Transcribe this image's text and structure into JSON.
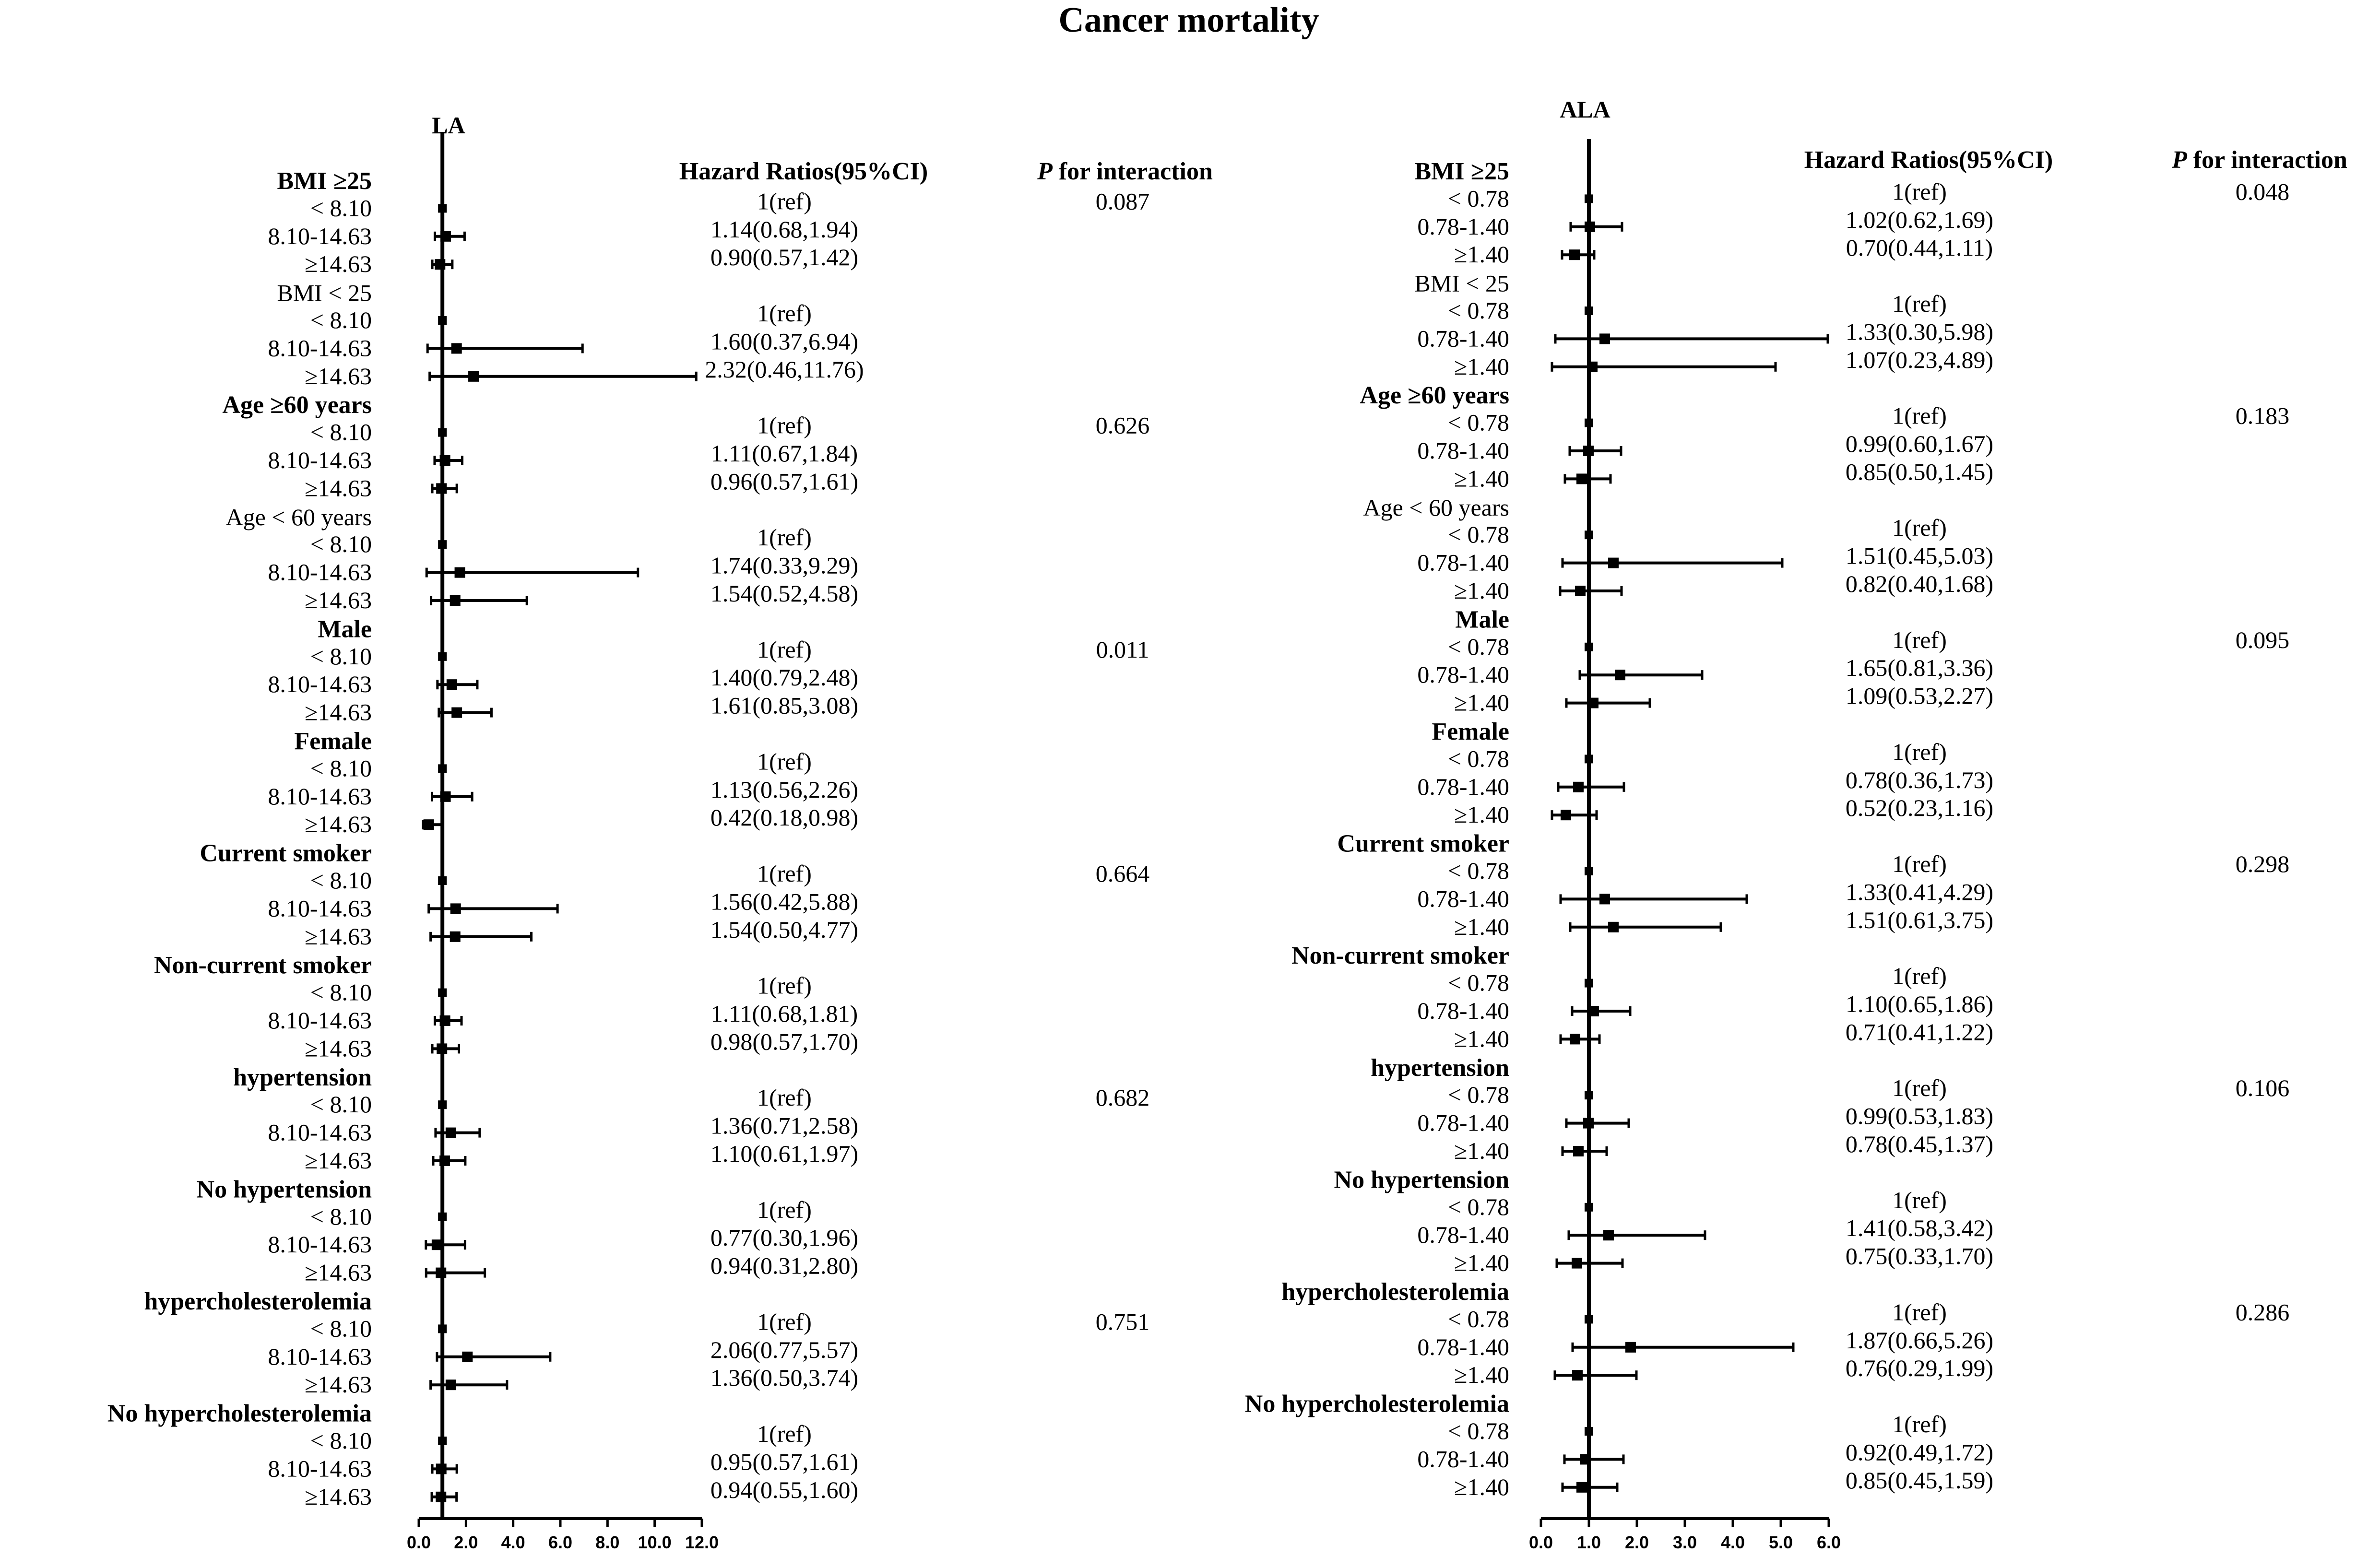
{
  "chart_data": {
    "type": "forest",
    "title": "Cancer mortality",
    "column_headers": {
      "hr": "Hazard Ratios(95%CI)",
      "p_prefix": "P",
      "p_rest": " for interaction"
    },
    "panels": [
      {
        "name": "LA",
        "xlim": [
          0,
          12
        ],
        "ticks": [
          "0.0",
          "2.0",
          "4.0",
          "6.0",
          "8.0",
          "10.0",
          "12.0"
        ],
        "tick_values": [
          0,
          2,
          4,
          6,
          8,
          10,
          12
        ],
        "ref_line": 1,
        "groups": [
          {
            "label": "BMI ≥25",
            "bold": true,
            "p": "0.087",
            "rows": [
              {
                "level": "< 8.10",
                "hr": 1,
                "lo": 1,
                "hi": 1,
                "text": "1(ref)"
              },
              {
                "level": "8.10-14.63",
                "hr": 1.14,
                "lo": 0.68,
                "hi": 1.94,
                "text": "1.14(0.68,1.94)"
              },
              {
                "level": "≥14.63",
                "hr": 0.9,
                "lo": 0.57,
                "hi": 1.42,
                "text": "0.90(0.57,1.42)"
              }
            ]
          },
          {
            "label": "BMI < 25",
            "bold": false,
            "p": "",
            "rows": [
              {
                "level": "< 8.10",
                "hr": 1,
                "lo": 1,
                "hi": 1,
                "text": "1(ref)"
              },
              {
                "level": "8.10-14.63",
                "hr": 1.6,
                "lo": 0.37,
                "hi": 6.94,
                "text": "1.60(0.37,6.94)"
              },
              {
                "level": "≥14.63",
                "hr": 2.32,
                "lo": 0.46,
                "hi": 11.76,
                "text": "2.32(0.46,11.76)"
              }
            ]
          },
          {
            "label": "Age ≥60 years",
            "bold": true,
            "p": "0.626",
            "rows": [
              {
                "level": "< 8.10",
                "hr": 1,
                "lo": 1,
                "hi": 1,
                "text": "1(ref)"
              },
              {
                "level": "8.10-14.63",
                "hr": 1.11,
                "lo": 0.67,
                "hi": 1.84,
                "text": "1.11(0.67,1.84)"
              },
              {
                "level": "≥14.63",
                "hr": 0.96,
                "lo": 0.57,
                "hi": 1.61,
                "text": "0.96(0.57,1.61)"
              }
            ]
          },
          {
            "label": "Age < 60 years",
            "bold": false,
            "p": "",
            "rows": [
              {
                "level": "< 8.10",
                "hr": 1,
                "lo": 1,
                "hi": 1,
                "text": "1(ref)"
              },
              {
                "level": "8.10-14.63",
                "hr": 1.74,
                "lo": 0.33,
                "hi": 9.29,
                "text": "1.74(0.33,9.29)"
              },
              {
                "level": "≥14.63",
                "hr": 1.54,
                "lo": 0.52,
                "hi": 4.58,
                "text": "1.54(0.52,4.58)"
              }
            ]
          },
          {
            "label": "Male",
            "bold": true,
            "p": "0.011",
            "rows": [
              {
                "level": "< 8.10",
                "hr": 1,
                "lo": 1,
                "hi": 1,
                "text": "1(ref)"
              },
              {
                "level": "8.10-14.63",
                "hr": 1.4,
                "lo": 0.79,
                "hi": 2.48,
                "text": "1.40(0.79,2.48)"
              },
              {
                "level": "≥14.63",
                "hr": 1.61,
                "lo": 0.85,
                "hi": 3.08,
                "text": "1.61(0.85,3.08)"
              }
            ]
          },
          {
            "label": "Female",
            "bold": true,
            "p": "",
            "rows": [
              {
                "level": "< 8.10",
                "hr": 1,
                "lo": 1,
                "hi": 1,
                "text": "1(ref)"
              },
              {
                "level": "8.10-14.63",
                "hr": 1.13,
                "lo": 0.56,
                "hi": 2.26,
                "text": "1.13(0.56,2.26)"
              },
              {
                "level": "≥14.63",
                "hr": 0.42,
                "lo": 0.18,
                "hi": 0.98,
                "text": "0.42(0.18,0.98)"
              }
            ]
          },
          {
            "label": "Current smoker",
            "bold": true,
            "p": "0.664",
            "rows": [
              {
                "level": "< 8.10",
                "hr": 1,
                "lo": 1,
                "hi": 1,
                "text": "1(ref)"
              },
              {
                "level": "8.10-14.63",
                "hr": 1.56,
                "lo": 0.42,
                "hi": 5.88,
                "text": "1.56(0.42,5.88)"
              },
              {
                "level": "≥14.63",
                "hr": 1.54,
                "lo": 0.5,
                "hi": 4.77,
                "text": "1.54(0.50,4.77)"
              }
            ]
          },
          {
            "label": "Non-current smoker",
            "bold": true,
            "p": "",
            "rows": [
              {
                "level": "< 8.10",
                "hr": 1,
                "lo": 1,
                "hi": 1,
                "text": "1(ref)"
              },
              {
                "level": "8.10-14.63",
                "hr": 1.11,
                "lo": 0.68,
                "hi": 1.81,
                "text": "1.11(0.68,1.81)"
              },
              {
                "level": "≥14.63",
                "hr": 0.98,
                "lo": 0.57,
                "hi": 1.7,
                "text": "0.98(0.57,1.70)"
              }
            ]
          },
          {
            "label": "hypertension",
            "bold": true,
            "p": "0.682",
            "rows": [
              {
                "level": "< 8.10",
                "hr": 1,
                "lo": 1,
                "hi": 1,
                "text": "1(ref)"
              },
              {
                "level": "8.10-14.63",
                "hr": 1.36,
                "lo": 0.71,
                "hi": 2.58,
                "text": "1.36(0.71,2.58)"
              },
              {
                "level": "≥14.63",
                "hr": 1.1,
                "lo": 0.61,
                "hi": 1.97,
                "text": "1.10(0.61,1.97)"
              }
            ]
          },
          {
            "label": "No hypertension",
            "bold": true,
            "p": "",
            "rows": [
              {
                "level": "< 8.10",
                "hr": 1,
                "lo": 1,
                "hi": 1,
                "text": "1(ref)"
              },
              {
                "level": "8.10-14.63",
                "hr": 0.77,
                "lo": 0.3,
                "hi": 1.96,
                "text": "0.77(0.30,1.96)"
              },
              {
                "level": "≥14.63",
                "hr": 0.94,
                "lo": 0.31,
                "hi": 2.8,
                "text": "0.94(0.31,2.80)"
              }
            ]
          },
          {
            "label": "hypercholesterolemia",
            "bold": true,
            "p": "0.751",
            "rows": [
              {
                "level": "< 8.10",
                "hr": 1,
                "lo": 1,
                "hi": 1,
                "text": "1(ref)"
              },
              {
                "level": "8.10-14.63",
                "hr": 2.06,
                "lo": 0.77,
                "hi": 5.57,
                "text": "2.06(0.77,5.57)"
              },
              {
                "level": "≥14.63",
                "hr": 1.36,
                "lo": 0.5,
                "hi": 3.74,
                "text": "1.36(0.50,3.74)"
              }
            ]
          },
          {
            "label": "No hypercholesterolemia",
            "bold": true,
            "p": "",
            "rows": [
              {
                "level": "< 8.10",
                "hr": 1,
                "lo": 1,
                "hi": 1,
                "text": "1(ref)"
              },
              {
                "level": "8.10-14.63",
                "hr": 0.95,
                "lo": 0.57,
                "hi": 1.61,
                "text": "0.95(0.57,1.61)"
              },
              {
                "level": "≥14.63",
                "hr": 0.94,
                "lo": 0.55,
                "hi": 1.6,
                "text": "0.94(0.55,1.60)"
              }
            ]
          }
        ]
      },
      {
        "name": "ALA",
        "xlim": [
          0,
          6
        ],
        "ticks": [
          "0.0",
          "1.0",
          "2.0",
          "3.0",
          "4.0",
          "5.0",
          "6.0"
        ],
        "tick_values": [
          0,
          1,
          2,
          3,
          4,
          5,
          6
        ],
        "ref_line": 1,
        "groups": [
          {
            "label": "BMI ≥25",
            "bold": true,
            "p": "0.048",
            "rows": [
              {
                "level": "< 0.78",
                "hr": 1,
                "lo": 1,
                "hi": 1,
                "text": "1(ref)"
              },
              {
                "level": "0.78-1.40",
                "hr": 1.02,
                "lo": 0.62,
                "hi": 1.69,
                "text": "1.02(0.62,1.69)"
              },
              {
                "level": "≥1.40",
                "hr": 0.7,
                "lo": 0.44,
                "hi": 1.11,
                "text": "0.70(0.44,1.11)"
              }
            ]
          },
          {
            "label": "BMI < 25",
            "bold": false,
            "p": "",
            "rows": [
              {
                "level": "< 0.78",
                "hr": 1,
                "lo": 1,
                "hi": 1,
                "text": "1(ref)"
              },
              {
                "level": "0.78-1.40",
                "hr": 1.33,
                "lo": 0.3,
                "hi": 5.98,
                "text": "1.33(0.30,5.98)"
              },
              {
                "level": "≥1.40",
                "hr": 1.07,
                "lo": 0.23,
                "hi": 4.89,
                "text": "1.07(0.23,4.89)"
              }
            ]
          },
          {
            "label": "Age ≥60 years",
            "bold": true,
            "p": "0.183",
            "rows": [
              {
                "level": "< 0.78",
                "hr": 1,
                "lo": 1,
                "hi": 1,
                "text": "1(ref)"
              },
              {
                "level": "0.78-1.40",
                "hr": 0.99,
                "lo": 0.6,
                "hi": 1.67,
                "text": "0.99(0.60,1.67)"
              },
              {
                "level": "≥1.40",
                "hr": 0.85,
                "lo": 0.5,
                "hi": 1.45,
                "text": "0.85(0.50,1.45)"
              }
            ]
          },
          {
            "label": "Age < 60 years",
            "bold": false,
            "p": "",
            "rows": [
              {
                "level": "< 0.78",
                "hr": 1,
                "lo": 1,
                "hi": 1,
                "text": "1(ref)"
              },
              {
                "level": "0.78-1.40",
                "hr": 1.51,
                "lo": 0.45,
                "hi": 5.03,
                "text": "1.51(0.45,5.03)"
              },
              {
                "level": "≥1.40",
                "hr": 0.82,
                "lo": 0.4,
                "hi": 1.68,
                "text": "0.82(0.40,1.68)"
              }
            ]
          },
          {
            "label": "Male",
            "bold": true,
            "p": "0.095",
            "rows": [
              {
                "level": "< 0.78",
                "hr": 1,
                "lo": 1,
                "hi": 1,
                "text": "1(ref)"
              },
              {
                "level": "0.78-1.40",
                "hr": 1.65,
                "lo": 0.81,
                "hi": 3.36,
                "text": "1.65(0.81,3.36)"
              },
              {
                "level": "≥1.40",
                "hr": 1.09,
                "lo": 0.53,
                "hi": 2.27,
                "text": "1.09(0.53,2.27)"
              }
            ]
          },
          {
            "label": "Female",
            "bold": true,
            "p": "",
            "rows": [
              {
                "level": "< 0.78",
                "hr": 1,
                "lo": 1,
                "hi": 1,
                "text": "1(ref)"
              },
              {
                "level": "0.78-1.40",
                "hr": 0.78,
                "lo": 0.36,
                "hi": 1.73,
                "text": "0.78(0.36,1.73)"
              },
              {
                "level": "≥1.40",
                "hr": 0.52,
                "lo": 0.23,
                "hi": 1.16,
                "text": "0.52(0.23,1.16)"
              }
            ]
          },
          {
            "label": "Current smoker",
            "bold": true,
            "p": "0.298",
            "rows": [
              {
                "level": "< 0.78",
                "hr": 1,
                "lo": 1,
                "hi": 1,
                "text": "1(ref)"
              },
              {
                "level": "0.78-1.40",
                "hr": 1.33,
                "lo": 0.41,
                "hi": 4.29,
                "text": "1.33(0.41,4.29)"
              },
              {
                "level": "≥1.40",
                "hr": 1.51,
                "lo": 0.61,
                "hi": 3.75,
                "text": "1.51(0.61,3.75)"
              }
            ]
          },
          {
            "label": "Non-current smoker",
            "bold": true,
            "p": "",
            "rows": [
              {
                "level": "< 0.78",
                "hr": 1,
                "lo": 1,
                "hi": 1,
                "text": "1(ref)"
              },
              {
                "level": "0.78-1.40",
                "hr": 1.1,
                "lo": 0.65,
                "hi": 1.86,
                "text": "1.10(0.65,1.86)"
              },
              {
                "level": "≥1.40",
                "hr": 0.71,
                "lo": 0.41,
                "hi": 1.22,
                "text": "0.71(0.41,1.22)"
              }
            ]
          },
          {
            "label": "hypertension",
            "bold": true,
            "p": "0.106",
            "rows": [
              {
                "level": "< 0.78",
                "hr": 1,
                "lo": 1,
                "hi": 1,
                "text": "1(ref)"
              },
              {
                "level": "0.78-1.40",
                "hr": 0.99,
                "lo": 0.53,
                "hi": 1.83,
                "text": "0.99(0.53,1.83)"
              },
              {
                "level": "≥1.40",
                "hr": 0.78,
                "lo": 0.45,
                "hi": 1.37,
                "text": "0.78(0.45,1.37)"
              }
            ]
          },
          {
            "label": "No hypertension",
            "bold": true,
            "p": "",
            "rows": [
              {
                "level": "< 0.78",
                "hr": 1,
                "lo": 1,
                "hi": 1,
                "text": "1(ref)"
              },
              {
                "level": "0.78-1.40",
                "hr": 1.41,
                "lo": 0.58,
                "hi": 3.42,
                "text": "1.41(0.58,3.42)"
              },
              {
                "level": "≥1.40",
                "hr": 0.75,
                "lo": 0.33,
                "hi": 1.7,
                "text": "0.75(0.33,1.70)"
              }
            ]
          },
          {
            "label": "hypercholesterolemia",
            "bold": true,
            "p": "0.286",
            "rows": [
              {
                "level": "< 0.78",
                "hr": 1,
                "lo": 1,
                "hi": 1,
                "text": "1(ref)"
              },
              {
                "level": "0.78-1.40",
                "hr": 1.87,
                "lo": 0.66,
                "hi": 5.26,
                "text": "1.87(0.66,5.26)"
              },
              {
                "level": "≥1.40",
                "hr": 0.76,
                "lo": 0.29,
                "hi": 1.99,
                "text": "0.76(0.29,1.99)"
              }
            ]
          },
          {
            "label": "No hypercholesterolemia",
            "bold": true,
            "p": "",
            "rows": [
              {
                "level": "< 0.78",
                "hr": 1,
                "lo": 1,
                "hi": 1,
                "text": "1(ref)"
              },
              {
                "level": "0.78-1.40",
                "hr": 0.92,
                "lo": 0.49,
                "hi": 1.72,
                "text": "0.92(0.49,1.72)"
              },
              {
                "level": "≥1.40",
                "hr": 0.85,
                "lo": 0.45,
                "hi": 1.59,
                "text": "0.85(0.45,1.59)"
              }
            ]
          }
        ]
      }
    ]
  }
}
